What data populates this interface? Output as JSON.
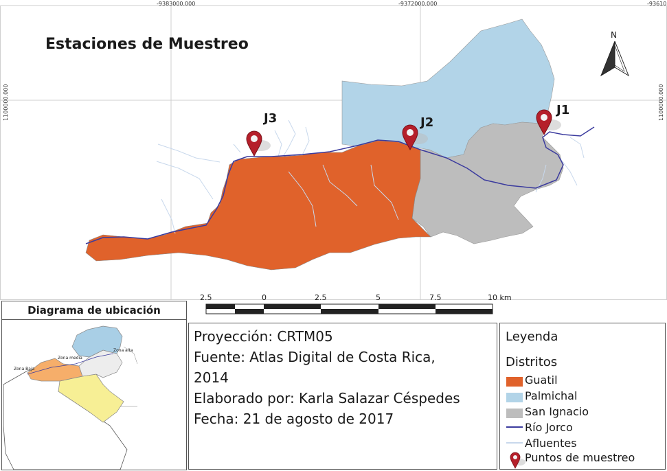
{
  "map": {
    "title": "Estaciones de Muestreo",
    "north_label": "N",
    "grid_labels": {
      "top": [
        "-9383000.000",
        "-9372000.000",
        "-93610"
      ],
      "left": "1100000.000",
      "right": "1100000.000"
    },
    "stations": [
      {
        "id": "J1",
        "label": "J1"
      },
      {
        "id": "J2",
        "label": "J2"
      },
      {
        "id": "J3",
        "label": "J3"
      }
    ],
    "scale_bar": {
      "labels": [
        "2.5",
        "0",
        "2.5",
        "5",
        "7.5",
        "10 km"
      ]
    },
    "colors": {
      "guatil": "#e0622b",
      "palmichal": "#b2d4e8",
      "san_ignacio": "#bdbdbd",
      "rio": "#3b3b9e",
      "afluentes": "#c8d8ec",
      "pin": "#b51f2a"
    }
  },
  "locator": {
    "title": "Diagrama de ubicación",
    "labels": {
      "zona_alta": "Zona alta",
      "zona_media": "Zona media",
      "zona_baja": "Zona Baja"
    },
    "colors": {
      "baja": "#f6ae6a",
      "media": "#ededed",
      "alta": "#a9cfe6",
      "south": "#f7ef95"
    }
  },
  "info": {
    "projection": "Proyección: CRTM05",
    "source_line1": "Fuente: Atlas Digital de Costa Rica,",
    "source_line2": "2014",
    "author": "Elaborado por: Karla Salazar Céspedes",
    "date": "Fecha: 21 de agosto de 2017"
  },
  "legend": {
    "title": "Leyenda",
    "subtitle": "Distritos",
    "items": [
      {
        "label": "Guatil",
        "icon": "orange-swatch"
      },
      {
        "label": "Palmichal",
        "icon": "blue-swatch"
      },
      {
        "label": "San Ignacio",
        "icon": "gray-swatch"
      },
      {
        "label": "Río Jorco",
        "icon": "dark-blue-line"
      },
      {
        "label": "Afluentes",
        "icon": "light-blue-line"
      },
      {
        "label": "Puntos de muestreo",
        "icon": "map-pin-icon"
      }
    ]
  }
}
